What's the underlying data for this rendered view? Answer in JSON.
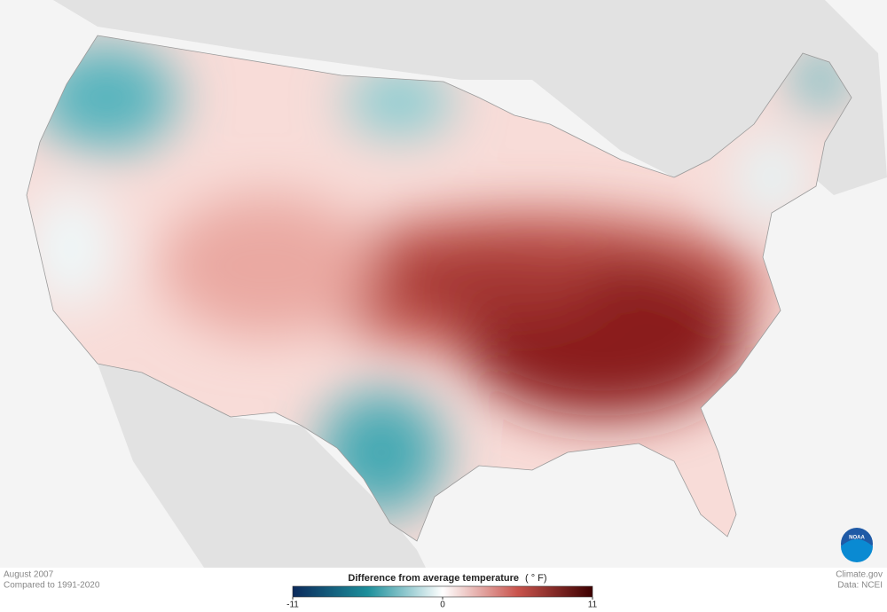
{
  "header": {
    "title": "August 2007",
    "subtitle": "Compared to 1991-2020"
  },
  "legend": {
    "title": "Difference from average temperature",
    "unit": "( ° F)",
    "range": [
      -11,
      11
    ],
    "ticks": [
      -11,
      0,
      11
    ],
    "colors": [
      "#0b2a5c",
      "#1d8f9b",
      "#ffffff",
      "#c9544d",
      "#3d0000"
    ]
  },
  "credits": {
    "site": "Climate.gov",
    "source": "Data: NCEI",
    "logo": "NOAA"
  }
}
